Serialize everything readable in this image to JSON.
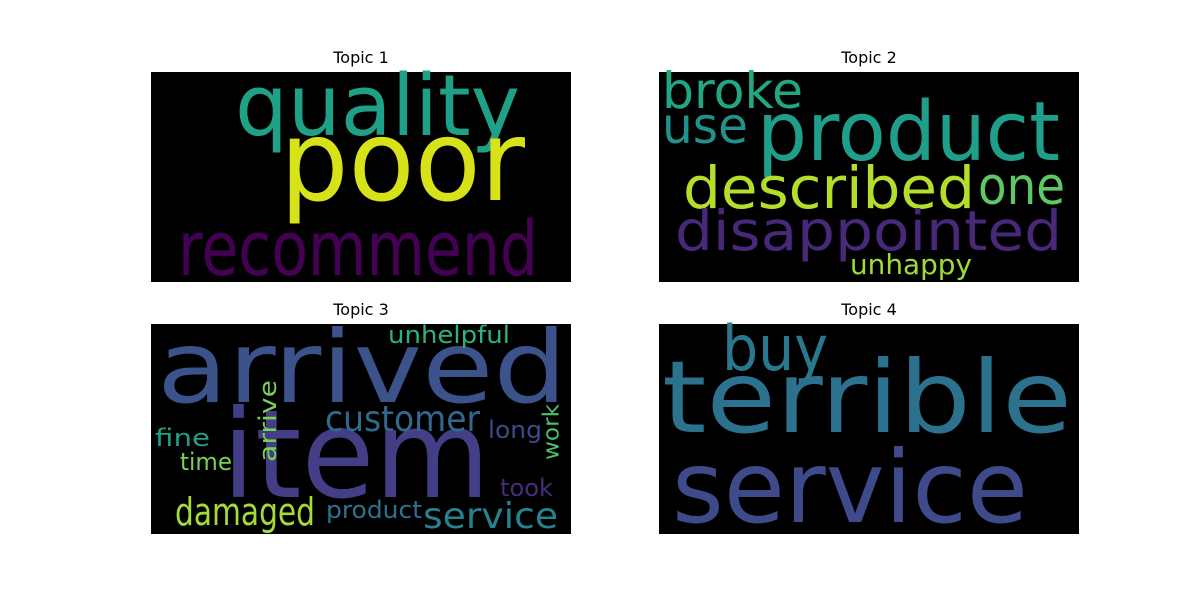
{
  "panels": [
    {
      "title": "Topic 1",
      "words": [
        {
          "text": "quality",
          "color": "#1fa187"
        },
        {
          "text": "poor",
          "color": "#d8e219"
        },
        {
          "text": "recommend",
          "color": "#440154"
        }
      ]
    },
    {
      "title": "Topic 2",
      "words": [
        {
          "text": "broke",
          "color": "#22a785"
        },
        {
          "text": "use",
          "color": "#21918c"
        },
        {
          "text": "product",
          "color": "#1f9e89"
        },
        {
          "text": "described",
          "color": "#b5de2b"
        },
        {
          "text": "one",
          "color": "#5ec962"
        },
        {
          "text": "disappointed",
          "color": "#482878"
        },
        {
          "text": "unhappy",
          "color": "#a0da39"
        }
      ]
    },
    {
      "title": "Topic 3",
      "words": [
        {
          "text": "arrived",
          "color": "#3b528b"
        },
        {
          "text": "item",
          "color": "#433e85"
        },
        {
          "text": "unhelpful",
          "color": "#2db27d"
        },
        {
          "text": "customer",
          "color": "#31688e"
        },
        {
          "text": "long",
          "color": "#3e4a89"
        },
        {
          "text": "work",
          "color": "#4ac16d"
        },
        {
          "text": "arrive",
          "color": "#7ad151"
        },
        {
          "text": "fine",
          "color": "#1f9e89"
        },
        {
          "text": "time",
          "color": "#7ad151"
        },
        {
          "text": "damaged",
          "color": "#a5db36"
        },
        {
          "text": "product",
          "color": "#2c728e"
        },
        {
          "text": "service",
          "color": "#26828e"
        },
        {
          "text": "took",
          "color": "#472d7b"
        }
      ]
    },
    {
      "title": "Topic 4",
      "words": [
        {
          "text": "buy",
          "color": "#2a788e"
        },
        {
          "text": "terrible",
          "color": "#2c728e"
        },
        {
          "text": "service",
          "color": "#3e4a89"
        }
      ]
    }
  ]
}
